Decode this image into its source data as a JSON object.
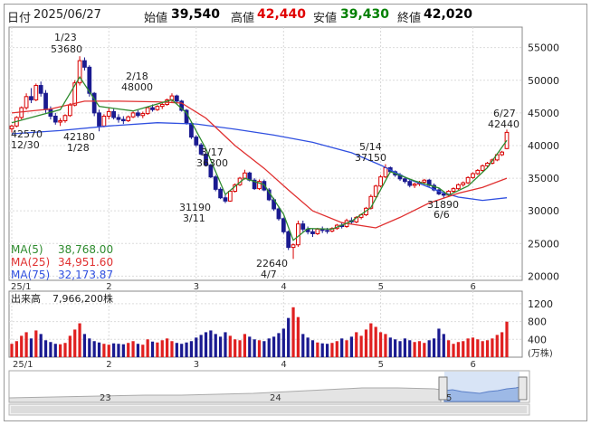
{
  "header": {
    "date_label": "日付",
    "date": "2025/06/27",
    "open_label": "始値",
    "open": "39,540",
    "high_label": "高値",
    "high": "42,440",
    "low_label": "安値",
    "low": "39,430",
    "close_label": "終値",
    "close": "42,020",
    "colors": {
      "open": "#000000",
      "high": "#e00000",
      "low": "#008000",
      "close": "#000000"
    }
  },
  "price_axis": {
    "ticks": [
      "55000",
      "50000",
      "45000",
      "40000",
      "35000",
      "30000",
      "25000",
      "20000"
    ],
    "ylim": [
      19500,
      58000
    ]
  },
  "month_labels": [
    "25/1",
    "2",
    "3",
    "4",
    "5",
    "6"
  ],
  "annotations": [
    {
      "id": "jan23-date",
      "text": "1/23"
    },
    {
      "id": "jan23-value",
      "text": "53680"
    },
    {
      "id": "feb18-date",
      "text": "2/18"
    },
    {
      "id": "feb18-value",
      "text": "48000"
    },
    {
      "id": "dec30-value",
      "text": "42570"
    },
    {
      "id": "dec30-date",
      "text": "12/30"
    },
    {
      "id": "jan28-value",
      "text": "42180"
    },
    {
      "id": "jan28-date",
      "text": "1/28"
    },
    {
      "id": "mar17-date",
      "text": "3/17"
    },
    {
      "id": "mar17-value",
      "text": "36300"
    },
    {
      "id": "mar11-value",
      "text": "31190"
    },
    {
      "id": "mar11-date",
      "text": "3/11"
    },
    {
      "id": "apr7-value",
      "text": "22640"
    },
    {
      "id": "apr7-date",
      "text": "4/7"
    },
    {
      "id": "may14-date",
      "text": "5/14"
    },
    {
      "id": "may14-value",
      "text": "37150"
    },
    {
      "id": "jun6-value",
      "text": "31890"
    },
    {
      "id": "jun6-date",
      "text": "6/6"
    },
    {
      "id": "jun27-date",
      "text": "6/27"
    },
    {
      "id": "jun27-value",
      "text": "42440"
    }
  ],
  "legend": [
    {
      "label": "MA(5)",
      "value": "38,768.00",
      "color": "#2e8b2e"
    },
    {
      "label": "MA(25)",
      "value": "34,951.60",
      "color": "#e03030"
    },
    {
      "label": "MA(75)",
      "value": "32,173.87",
      "color": "#3050e0"
    }
  ],
  "volume": {
    "label": "出来高",
    "value": "7,966,200株",
    "axis_ticks": [
      "1200",
      "800",
      "400"
    ],
    "unit": "(万株)",
    "ymax": 1400
  },
  "navigator": {
    "labels": [
      "23",
      "24",
      "5"
    ]
  },
  "chart_data": {
    "type": "candlestick",
    "x_start": "2024/12/30",
    "x_end": "2025/06/27",
    "candles": [
      [
        42570,
        43200,
        42000,
        43000
      ],
      [
        43000,
        44500,
        42800,
        44300
      ],
      [
        44300,
        46000,
        44000,
        45800
      ],
      [
        45800,
        48000,
        45500,
        47500
      ],
      [
        47500,
        48800,
        46500,
        47000
      ],
      [
        47000,
        49500,
        46800,
        49200
      ],
      [
        49200,
        49800,
        47500,
        48000
      ],
      [
        48000,
        48500,
        45000,
        45500
      ],
      [
        45500,
        46000,
        44000,
        44500
      ],
      [
        44500,
        45000,
        43200,
        43600
      ],
      [
        43600,
        44200,
        43000,
        43800
      ],
      [
        43800,
        44800,
        43500,
        44600
      ],
      [
        44600,
        46500,
        44400,
        46200
      ],
      [
        46200,
        50000,
        46000,
        49600
      ],
      [
        49600,
        53680,
        49200,
        53000
      ],
      [
        53000,
        53500,
        51500,
        52000
      ],
      [
        52000,
        52300,
        47500,
        48000
      ],
      [
        48000,
        48200,
        44500,
        45000
      ],
      [
        45000,
        45500,
        42180,
        43000
      ],
      [
        43000,
        44800,
        42800,
        44500
      ],
      [
        44500,
        45800,
        44000,
        45200
      ],
      [
        45200,
        45600,
        44000,
        44300
      ],
      [
        44300,
        44800,
        43500,
        44000
      ],
      [
        44000,
        44500,
        43300,
        43800
      ],
      [
        43800,
        44600,
        43600,
        44400
      ],
      [
        44400,
        45200,
        44200,
        45000
      ],
      [
        45000,
        45400,
        44300,
        44600
      ],
      [
        44600,
        45200,
        44200,
        44900
      ],
      [
        44900,
        46000,
        44700,
        45800
      ],
      [
        45800,
        46300,
        45200,
        45500
      ],
      [
        45500,
        46200,
        45300,
        46000
      ],
      [
        46000,
        46600,
        45600,
        46300
      ],
      [
        46300,
        47200,
        46100,
        47000
      ],
      [
        47000,
        48000,
        46600,
        47600
      ],
      [
        47600,
        47800,
        46500,
        46800
      ],
      [
        46800,
        47000,
        45200,
        45400
      ],
      [
        45400,
        45600,
        43200,
        43400
      ],
      [
        43400,
        43700,
        41000,
        41300
      ],
      [
        41300,
        41600,
        39800,
        40100
      ],
      [
        40100,
        40400,
        38500,
        38700
      ],
      [
        38700,
        38900,
        36800,
        37000
      ],
      [
        37000,
        37200,
        35000,
        35200
      ],
      [
        35200,
        35500,
        33000,
        33300
      ],
      [
        33300,
        33600,
        31800,
        32000
      ],
      [
        32000,
        32500,
        31190,
        31500
      ],
      [
        31500,
        33200,
        31400,
        33000
      ],
      [
        33000,
        34200,
        32800,
        34000
      ],
      [
        34000,
        35200,
        33800,
        35000
      ],
      [
        35000,
        36300,
        34800,
        35800
      ],
      [
        35800,
        36000,
        34500,
        34700
      ],
      [
        34700,
        35000,
        33200,
        33400
      ],
      [
        33400,
        34800,
        33200,
        34500
      ],
      [
        34500,
        34800,
        33000,
        33200
      ],
      [
        33200,
        33500,
        31500,
        31700
      ],
      [
        31700,
        32000,
        30000,
        30300
      ],
      [
        30300,
        30600,
        28500,
        28800
      ],
      [
        28800,
        29000,
        26500,
        26800
      ],
      [
        26800,
        27000,
        24000,
        24400
      ],
      [
        24400,
        25000,
        22640,
        24800
      ],
      [
        24800,
        28500,
        24500,
        28000
      ],
      [
        28000,
        28500,
        26800,
        27200
      ],
      [
        27200,
        27600,
        26400,
        26800
      ],
      [
        26800,
        27200,
        26000,
        26500
      ],
      [
        26500,
        27400,
        26300,
        27200
      ],
      [
        27200,
        27600,
        26600,
        27000
      ],
      [
        27000,
        27400,
        26500,
        26900
      ],
      [
        26900,
        27500,
        26700,
        27300
      ],
      [
        27300,
        28000,
        27100,
        27800
      ],
      [
        27800,
        28200,
        27300,
        27600
      ],
      [
        27600,
        28800,
        27400,
        28500
      ],
      [
        28500,
        29000,
        28000,
        28300
      ],
      [
        28300,
        29200,
        28100,
        29000
      ],
      [
        29000,
        29600,
        28700,
        29400
      ],
      [
        29400,
        30600,
        29200,
        30400
      ],
      [
        30400,
        32500,
        30200,
        32200
      ],
      [
        32200,
        34000,
        32000,
        33800
      ],
      [
        33800,
        35500,
        33600,
        35200
      ],
      [
        35200,
        37150,
        35000,
        36600
      ],
      [
        36600,
        36800,
        35800,
        36000
      ],
      [
        36000,
        36200,
        35200,
        35500
      ],
      [
        35500,
        35800,
        34600,
        34900
      ],
      [
        34900,
        35200,
        34200,
        34500
      ],
      [
        34500,
        34800,
        33600,
        33900
      ],
      [
        33900,
        34300,
        33500,
        34100
      ],
      [
        34100,
        34600,
        33800,
        34400
      ],
      [
        34400,
        34900,
        34000,
        34700
      ],
      [
        34700,
        34900,
        33700,
        33900
      ],
      [
        33900,
        34200,
        33000,
        33200
      ],
      [
        33200,
        33500,
        32400,
        32600
      ],
      [
        32600,
        33000,
        31890,
        32400
      ],
      [
        32400,
        33200,
        32200,
        33000
      ],
      [
        33000,
        33600,
        32800,
        33400
      ],
      [
        33400,
        34200,
        33200,
        34000
      ],
      [
        34000,
        34500,
        33700,
        34300
      ],
      [
        34300,
        35300,
        34100,
        35100
      ],
      [
        35100,
        35900,
        34900,
        35700
      ],
      [
        35700,
        36400,
        35500,
        36200
      ],
      [
        36200,
        37100,
        36000,
        36900
      ],
      [
        36900,
        37500,
        36600,
        37300
      ],
      [
        37300,
        38000,
        37100,
        37800
      ],
      [
        37800,
        38800,
        37600,
        38600
      ],
      [
        38600,
        39200,
        38400,
        39000
      ],
      [
        39540,
        42440,
        39430,
        42020
      ]
    ],
    "ma5": [
      [
        0,
        43500
      ],
      [
        10,
        45500
      ],
      [
        14,
        50500
      ],
      [
        18,
        46000
      ],
      [
        25,
        45300
      ],
      [
        33,
        47000
      ],
      [
        36,
        45000
      ],
      [
        40,
        39500
      ],
      [
        44,
        32500
      ],
      [
        48,
        35000
      ],
      [
        52,
        34000
      ],
      [
        56,
        29500
      ],
      [
        58,
        25500
      ],
      [
        61,
        27300
      ],
      [
        66,
        27200
      ],
      [
        70,
        28400
      ],
      [
        74,
        30500
      ],
      [
        78,
        36000
      ],
      [
        83,
        34600
      ],
      [
        88,
        33500
      ],
      [
        90,
        32400
      ],
      [
        94,
        33800
      ],
      [
        98,
        36600
      ],
      [
        102,
        40800
      ]
    ],
    "ma25": [
      [
        0,
        45000
      ],
      [
        8,
        45600
      ],
      [
        15,
        46800
      ],
      [
        22,
        46800
      ],
      [
        30,
        46700
      ],
      [
        35,
        46500
      ],
      [
        40,
        44200
      ],
      [
        46,
        40000
      ],
      [
        52,
        36500
      ],
      [
        57,
        33200
      ],
      [
        62,
        30000
      ],
      [
        68,
        28200
      ],
      [
        75,
        27400
      ],
      [
        80,
        29000
      ],
      [
        86,
        31200
      ],
      [
        92,
        32700
      ],
      [
        97,
        33600
      ],
      [
        102,
        35000
      ]
    ],
    "ma75": [
      [
        0,
        41800
      ],
      [
        10,
        42300
      ],
      [
        20,
        43000
      ],
      [
        30,
        43500
      ],
      [
        38,
        43300
      ],
      [
        46,
        42500
      ],
      [
        54,
        41600
      ],
      [
        62,
        40500
      ],
      [
        70,
        38900
      ],
      [
        76,
        37000
      ],
      [
        82,
        34800
      ],
      [
        88,
        33000
      ],
      [
        92,
        32100
      ],
      [
        97,
        31600
      ],
      [
        102,
        32000
      ]
    ],
    "volumes": [
      300,
      360,
      480,
      560,
      420,
      600,
      520,
      380,
      340,
      300,
      290,
      320,
      480,
      620,
      760,
      520,
      420,
      360,
      330,
      300,
      280,
      310,
      300,
      290,
      320,
      360,
      300,
      280,
      400,
      350,
      330,
      380,
      420,
      360,
      320,
      300,
      330,
      360,
      440,
      500,
      560,
      600,
      520,
      460,
      560,
      480,
      400,
      380,
      520,
      460,
      400,
      380,
      360,
      420,
      460,
      540,
      640,
      880,
      1120,
      900,
      520,
      440,
      380,
      330,
      310,
      300,
      320,
      360,
      420,
      380,
      460,
      560,
      480,
      620,
      760,
      680,
      560,
      520,
      440,
      400,
      360,
      420,
      380,
      340,
      360,
      320,
      380,
      420,
      640,
      520,
      380,
      300,
      340,
      360,
      420,
      440,
      400,
      360,
      380,
      420,
      500,
      560,
      797
    ]
  }
}
